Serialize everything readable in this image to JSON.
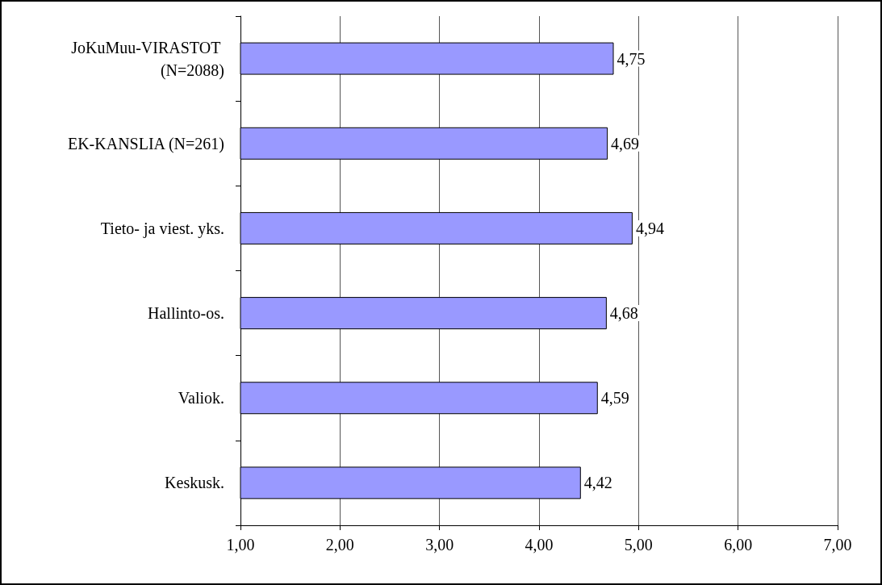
{
  "chart_data": {
    "type": "bar",
    "orientation": "horizontal",
    "categories": [
      "JoKuMuu-VIRASTOT (N=2088)",
      "EK-KANSLIA (N=261)",
      "Tieto- ja viest. yks.",
      "Hallinto-os.",
      "Valiok.",
      "Keskusk."
    ],
    "values": [
      4.75,
      4.69,
      4.94,
      4.68,
      4.59,
      4.42
    ],
    "value_labels": [
      "4,75",
      "4,69",
      "4,94",
      "4,68",
      "4,59",
      "4,42"
    ],
    "color": "#9999ff",
    "xlim": [
      1,
      7
    ],
    "xticks": [
      {
        "value": 1,
        "label": "1,00"
      },
      {
        "value": 2,
        "label": "2,00"
      },
      {
        "value": 3,
        "label": "3,00"
      },
      {
        "value": 4,
        "label": "4,00"
      },
      {
        "value": 5,
        "label": "5,00"
      },
      {
        "value": 6,
        "label": "6,00"
      },
      {
        "value": 7,
        "label": "7,00"
      }
    ],
    "grid": "x"
  }
}
